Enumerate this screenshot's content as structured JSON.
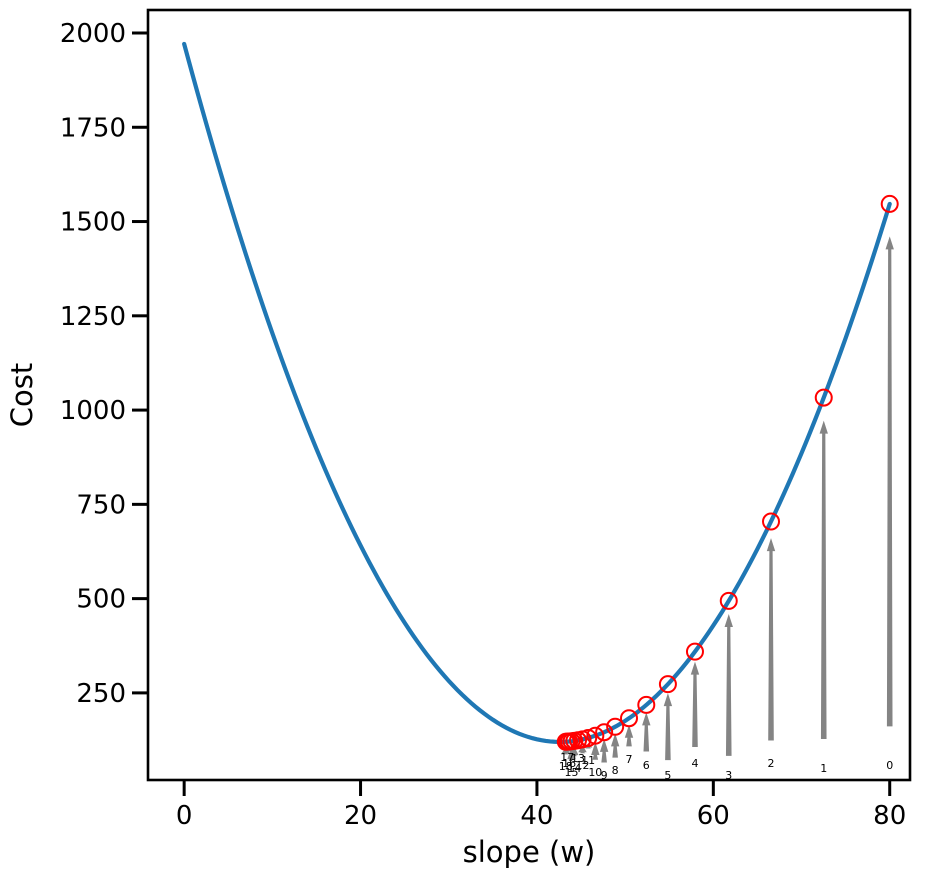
{
  "chart_data": {
    "type": "line",
    "title": "",
    "xlabel": "slope (w)",
    "ylabel": "Cost",
    "xlim": [
      -4.1,
      82.3
    ],
    "ylim": [
      19,
      2061
    ],
    "xticks": [
      0,
      20,
      40,
      60,
      80
    ],
    "yticks": [
      250,
      500,
      750,
      1000,
      1250,
      1500,
      1750,
      2000
    ],
    "grid": false,
    "legend_position": "none",
    "curve": {
      "name": "cost-function-parabola",
      "color": "#1f77b4",
      "equation": "cost(w) = 1.02*(w - 42.6)^2 + 120",
      "a": 1.02,
      "w_min": 42.6,
      "cost_min": 120,
      "w_start": 0,
      "w_end": 80
    },
    "descent": {
      "description": "gradient-descent iterates marked by open red circles with gray annotation arrows from iteration-number labels",
      "marker": "open-circle",
      "marker_color": "#ff0000",
      "arrow_color": "#848484",
      "labels": [
        "0",
        "1",
        "2",
        "3",
        "4",
        "5",
        "6",
        "7",
        "8",
        "9",
        "10",
        "11",
        "12",
        "13",
        "14",
        "15",
        "16",
        "17",
        "18"
      ],
      "w": [
        80.0,
        72.52,
        66.54,
        61.75,
        57.92,
        54.85,
        52.4,
        50.44,
        48.87,
        47.62,
        46.62,
        45.81,
        45.17,
        44.66,
        44.24,
        43.92,
        43.65,
        43.44,
        43.27
      ],
      "cost": [
        1546.7,
        1033.1,
        704.4,
        494.0,
        359.4,
        273.2,
        218.1,
        182.8,
        160.2,
        145.7,
        136.5,
        130.5,
        126.7,
        124.3,
        122.8,
        121.8,
        121.1,
        120.7,
        120.5
      ],
      "label_y": [
        59,
        51,
        64,
        32,
        64,
        32,
        59,
        75,
        45,
        32,
        40,
        72,
        59,
        77,
        51,
        40,
        64,
        80,
        56
      ]
    }
  }
}
